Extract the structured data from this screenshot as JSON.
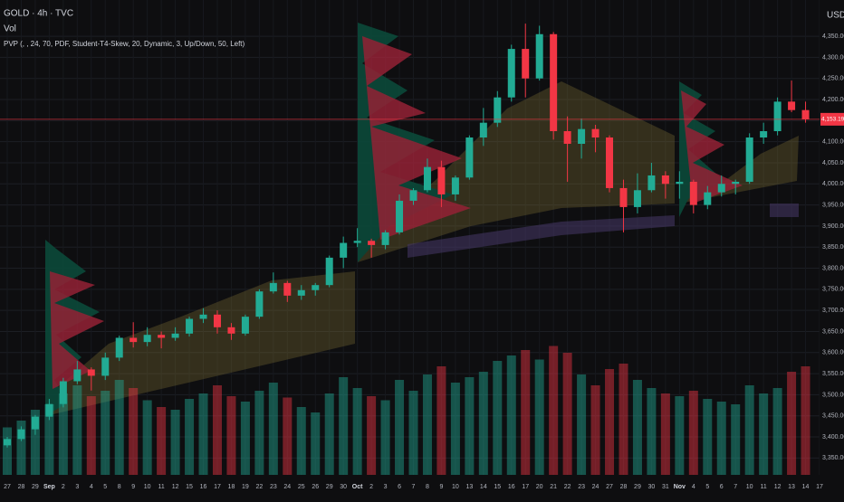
{
  "header": {
    "symbol": "GOLD · 4h · TVC",
    "indicator_vol": "Vol",
    "indicator_pvp": "PVP (, , 24, 70, PDF, Student-T4-Skew, 20, Dynamic, 3, Up/Down, 50, Left)",
    "currency": "USD"
  },
  "chart_data": {
    "type": "candlestick",
    "categories": [
      "27",
      "28",
      "29",
      "Sep",
      "2",
      "3",
      "4",
      "5",
      "8",
      "9",
      "10",
      "11",
      "12",
      "15",
      "16",
      "17",
      "18",
      "19",
      "22",
      "23",
      "24",
      "25",
      "26",
      "29",
      "30",
      "Oct",
      "2",
      "3",
      "6",
      "7",
      "8",
      "9",
      "10",
      "13",
      "14",
      "15",
      "16",
      "17",
      "20",
      "21",
      "22",
      "23",
      "24",
      "27",
      "28",
      "29",
      "30",
      "31",
      "Nov",
      "4",
      "5",
      "6",
      "7",
      "10",
      "11",
      "12",
      "13",
      "14",
      "17"
    ],
    "candles": [
      {
        "open": 3380,
        "high": 3400,
        "low": 3375,
        "close": 3395
      },
      {
        "open": 3395,
        "high": 3425,
        "low": 3390,
        "close": 3418
      },
      {
        "open": 3418,
        "high": 3452,
        "low": 3405,
        "close": 3448
      },
      {
        "open": 3448,
        "high": 3490,
        "low": 3440,
        "close": 3478
      },
      {
        "open": 3478,
        "high": 3540,
        "low": 3470,
        "close": 3532
      },
      {
        "open": 3532,
        "high": 3580,
        "low": 3525,
        "close": 3560
      },
      {
        "open": 3560,
        "high": 3565,
        "low": 3510,
        "close": 3545
      },
      {
        "open": 3545,
        "high": 3600,
        "low": 3535,
        "close": 3588
      },
      {
        "open": 3588,
        "high": 3640,
        "low": 3580,
        "close": 3635
      },
      {
        "open": 3635,
        "high": 3672,
        "low": 3612,
        "close": 3625
      },
      {
        "open": 3625,
        "high": 3660,
        "low": 3615,
        "close": 3642
      },
      {
        "open": 3642,
        "high": 3650,
        "low": 3610,
        "close": 3635
      },
      {
        "open": 3635,
        "high": 3660,
        "low": 3628,
        "close": 3645
      },
      {
        "open": 3645,
        "high": 3685,
        "low": 3638,
        "close": 3680
      },
      {
        "open": 3680,
        "high": 3705,
        "low": 3670,
        "close": 3690
      },
      {
        "open": 3690,
        "high": 3700,
        "low": 3645,
        "close": 3660
      },
      {
        "open": 3660,
        "high": 3670,
        "low": 3630,
        "close": 3645
      },
      {
        "open": 3645,
        "high": 3690,
        "low": 3640,
        "close": 3685
      },
      {
        "open": 3685,
        "high": 3750,
        "low": 3680,
        "close": 3745
      },
      {
        "open": 3745,
        "high": 3790,
        "low": 3740,
        "close": 3765
      },
      {
        "open": 3765,
        "high": 3770,
        "low": 3720,
        "close": 3735
      },
      {
        "open": 3735,
        "high": 3760,
        "low": 3725,
        "close": 3748
      },
      {
        "open": 3748,
        "high": 3765,
        "low": 3735,
        "close": 3760
      },
      {
        "open": 3760,
        "high": 3830,
        "low": 3755,
        "close": 3825
      },
      {
        "open": 3825,
        "high": 3875,
        "low": 3800,
        "close": 3860
      },
      {
        "open": 3860,
        "high": 3895,
        "low": 3850,
        "close": 3865
      },
      {
        "open": 3865,
        "high": 3870,
        "low": 3825,
        "close": 3855
      },
      {
        "open": 3855,
        "high": 3890,
        "low": 3845,
        "close": 3885
      },
      {
        "open": 3885,
        "high": 3975,
        "low": 3880,
        "close": 3960
      },
      {
        "open": 3960,
        "high": 3990,
        "low": 3950,
        "close": 3985
      },
      {
        "open": 3985,
        "high": 4060,
        "low": 3980,
        "close": 4040
      },
      {
        "open": 4040,
        "high": 4055,
        "low": 3945,
        "close": 3975
      },
      {
        "open": 3975,
        "high": 4020,
        "low": 3960,
        "close": 4015
      },
      {
        "open": 4015,
        "high": 4115,
        "low": 4010,
        "close": 4110
      },
      {
        "open": 4110,
        "high": 4180,
        "low": 4090,
        "close": 4145
      },
      {
        "open": 4145,
        "high": 4220,
        "low": 4135,
        "close": 4205
      },
      {
        "open": 4205,
        "high": 4330,
        "low": 4195,
        "close": 4320
      },
      {
        "open": 4320,
        "high": 4380,
        "low": 4205,
        "close": 4250
      },
      {
        "open": 4250,
        "high": 4375,
        "low": 4245,
        "close": 4355
      },
      {
        "open": 4355,
        "high": 4360,
        "low": 4105,
        "close": 4125
      },
      {
        "open": 4125,
        "high": 4160,
        "low": 4005,
        "close": 4095
      },
      {
        "open": 4095,
        "high": 4155,
        "low": 4060,
        "close": 4130
      },
      {
        "open": 4130,
        "high": 4140,
        "low": 4075,
        "close": 4110
      },
      {
        "open": 4110,
        "high": 4115,
        "low": 3980,
        "close": 3990
      },
      {
        "open": 3990,
        "high": 4010,
        "low": 3885,
        "close": 3945
      },
      {
        "open": 3945,
        "high": 4025,
        "low": 3930,
        "close": 3985
      },
      {
        "open": 3985,
        "high": 4050,
        "low": 3980,
        "close": 4020
      },
      {
        "open": 4020,
        "high": 4030,
        "low": 3965,
        "close": 4000
      },
      {
        "open": 4000,
        "high": 4030,
        "low": 3965,
        "close": 4005
      },
      {
        "open": 4005,
        "high": 4010,
        "low": 3930,
        "close": 3950
      },
      {
        "open": 3950,
        "high": 3995,
        "low": 3940,
        "close": 3980
      },
      {
        "open": 3980,
        "high": 4020,
        "low": 3970,
        "close": 4000
      },
      {
        "open": 4000,
        "high": 4010,
        "low": 3975,
        "close": 4005
      },
      {
        "open": 4005,
        "high": 4120,
        "low": 4000,
        "close": 4110
      },
      {
        "open": 4110,
        "high": 4145,
        "low": 4095,
        "close": 4125
      },
      {
        "open": 4125,
        "high": 4205,
        "low": 4115,
        "close": 4195
      },
      {
        "open": 4195,
        "high": 4245,
        "low": 4170,
        "close": 4175
      },
      {
        "open": 4175,
        "high": 4195,
        "low": 4145,
        "close": 4153.19
      },
      null
    ],
    "volume": [
      35,
      40,
      48,
      52,
      60,
      66,
      58,
      62,
      70,
      64,
      55,
      50,
      48,
      56,
      60,
      66,
      58,
      54,
      62,
      68,
      57,
      50,
      46,
      60,
      72,
      64,
      58,
      55,
      70,
      62,
      74,
      80,
      68,
      72,
      76,
      84,
      88,
      92,
      85,
      95,
      90,
      74,
      66,
      78,
      82,
      70,
      64,
      60,
      58,
      62,
      56,
      54,
      52,
      66,
      60,
      64,
      76,
      80,
      null
    ],
    "volume_ylim": [
      0,
      100
    ],
    "last_price": 4153.19,
    "last_price_label": "4,153.190",
    "ylim": [
      3310,
      4436
    ],
    "yticks": [
      {
        "value": 3350,
        "label": "3,350.000"
      },
      {
        "value": 3400,
        "label": "3,400.000"
      },
      {
        "value": 3450,
        "label": "3,450.000"
      },
      {
        "value": 3500,
        "label": "3,500.000"
      },
      {
        "value": 3550,
        "label": "3,550.000"
      },
      {
        "value": 3600,
        "label": "3,600.000"
      },
      {
        "value": 3650,
        "label": "3,650.000"
      },
      {
        "value": 3700,
        "label": "3,700.000"
      },
      {
        "value": 3750,
        "label": "3,750.000"
      },
      {
        "value": 3800,
        "label": "3,800.000"
      },
      {
        "value": 3850,
        "label": "3,850.000"
      },
      {
        "value": 3900,
        "label": "3,900.000"
      },
      {
        "value": 3950,
        "label": "3,950.000"
      },
      {
        "value": 4000,
        "label": "4,000.000"
      },
      {
        "value": 4050,
        "label": "4,050.000"
      },
      {
        "value": 4100,
        "label": "4,100.000"
      },
      {
        "value": 4150,
        "label": "4,150.000"
      },
      {
        "value": 4200,
        "label": "4,200.000"
      },
      {
        "value": 4250,
        "label": "4,250.000"
      },
      {
        "value": 4300,
        "label": "4,300.000"
      },
      {
        "value": 4350,
        "label": "4,350.000"
      }
    ],
    "up_color": "#22ab94",
    "down_color": "#f23645",
    "grid": true
  }
}
